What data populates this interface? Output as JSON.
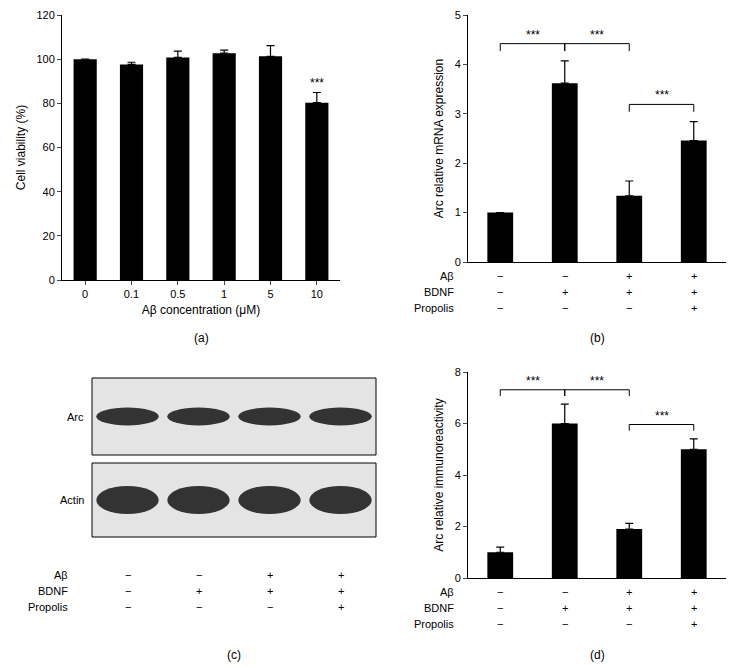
{
  "chart_data": [
    {
      "type": "bar",
      "panel_label": "(a)",
      "categories": [
        "0",
        "0.1",
        "0.5",
        "1",
        "5",
        "10"
      ],
      "values": [
        100,
        97.6,
        100.8,
        102.7,
        101.3,
        80.3
      ],
      "errors": [
        0,
        1.0,
        2.8,
        1.4,
        4.8,
        4.6
      ],
      "color": "#000000",
      "xlabel": "Aβ concentration (μM)",
      "ylabel": "Cell viability (%)",
      "ylim": [
        0,
        120
      ],
      "yticks": [
        0,
        20,
        40,
        60,
        80,
        100,
        120
      ],
      "grid": false,
      "annotations": [
        {
          "category": "10",
          "text": "***"
        }
      ]
    },
    {
      "type": "bar",
      "panel_label": "(b)",
      "categories": [
        null,
        null,
        null,
        null
      ],
      "values": [
        1.0,
        3.62,
        1.34,
        2.46
      ],
      "errors": [
        0,
        0.45,
        0.3,
        0.38
      ],
      "color": "#000000",
      "ylabel": "Arc relative mRNA expression",
      "ylim": [
        0,
        5
      ],
      "yticks": [
        0,
        1,
        2,
        3,
        4,
        5
      ],
      "grid": false,
      "tick_labels": "y",
      "brackets": [
        {
          "from": 0,
          "to": 1,
          "text": "***"
        },
        {
          "from": 1,
          "to": 2,
          "text": "***"
        },
        {
          "from": 2,
          "to": 3,
          "text": "***"
        }
      ],
      "conditions": [
        {
          "name": "Aβ",
          "marks": [
            "−",
            "−",
            "+",
            "+"
          ]
        },
        {
          "name": "BDNF",
          "marks": [
            "−",
            "+",
            "+",
            "+"
          ]
        },
        {
          "name": "Propolis",
          "marks": [
            "−",
            "−",
            "−",
            "+"
          ]
        }
      ]
    },
    {
      "type": "bar",
      "panel_label": "(d)",
      "categories": [
        null,
        null,
        null,
        null
      ],
      "values": [
        1.0,
        6.0,
        1.9,
        5.0
      ],
      "errors": [
        0.2,
        0.75,
        0.22,
        0.4
      ],
      "color": "#000000",
      "ylabel": "Arc relative immunoreactivity",
      "ylim": [
        0,
        8
      ],
      "yticks": [
        0,
        2,
        4,
        6,
        8
      ],
      "grid": false,
      "tick_labels": "y",
      "brackets": [
        {
          "from": 0,
          "to": 1,
          "text": "***"
        },
        {
          "from": 1,
          "to": 2,
          "text": "***"
        },
        {
          "from": 2,
          "to": 3,
          "text": "***"
        }
      ],
      "conditions": [
        {
          "name": "Aβ",
          "marks": [
            "−",
            "−",
            "+",
            "+"
          ]
        },
        {
          "name": "BDNF",
          "marks": [
            "−",
            "+",
            "+",
            "+"
          ]
        },
        {
          "name": "Propolis",
          "marks": [
            "−",
            "−",
            "−",
            "+"
          ]
        }
      ]
    }
  ],
  "blot": {
    "panel_label": "(c)",
    "bands": [
      "Arc",
      "Actin"
    ],
    "conditions": [
      {
        "name": "Aβ",
        "marks": [
          "−",
          "−",
          "+",
          "+"
        ]
      },
      {
        "name": "BDNF",
        "marks": [
          "−",
          "+",
          "+",
          "+"
        ]
      },
      {
        "name": "Propolis",
        "marks": [
          "−",
          "−",
          "−",
          "+"
        ]
      }
    ]
  }
}
